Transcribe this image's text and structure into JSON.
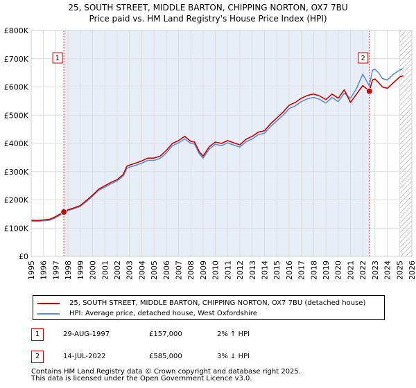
{
  "chart_data": {
    "type": "line",
    "title": "25, SOUTH STREET, MIDDLE BARTON, CHIPPING NORTON, OX7 7BU",
    "subtitle": "Price paid vs. HM Land Registry's House Price Index (HPI)",
    "xlabel": "",
    "ylabel": "",
    "xlim": [
      1995,
      2026
    ],
    "ylim": [
      0,
      800000
    ],
    "y_ticks": [
      0,
      100000,
      200000,
      300000,
      400000,
      500000,
      600000,
      700000,
      800000
    ],
    "y_tick_labels": [
      "£0",
      "£100K",
      "£200K",
      "£300K",
      "£400K",
      "£500K",
      "£600K",
      "£700K",
      "£800K"
    ],
    "x_ticks": [
      1995,
      1996,
      1997,
      1998,
      1999,
      2000,
      2001,
      2002,
      2003,
      2004,
      2005,
      2006,
      2007,
      2008,
      2009,
      2010,
      2011,
      2012,
      2013,
      2014,
      2015,
      2016,
      2017,
      2018,
      2019,
      2020,
      2021,
      2022,
      2023,
      2024,
      2025,
      2026
    ],
    "x_tick_labels": [
      "1995",
      "1996",
      "1997",
      "1998",
      "1999",
      "2000",
      "2001",
      "2002",
      "2003",
      "2004",
      "2005",
      "2006",
      "2007",
      "2008",
      "2009",
      "2010",
      "2011",
      "2012",
      "2013",
      "2014",
      "2015",
      "2016",
      "2017",
      "2018",
      "2019",
      "2020",
      "2021",
      "2022",
      "2023",
      "2024",
      "2025",
      "2026"
    ],
    "grid": true,
    "shaded_period": [
      1997.66,
      2022.54
    ],
    "hatched_future_from": 2025.0,
    "series": [
      {
        "name": "25, SOUTH STREET, MIDDLE BARTON, CHIPPING NORTON, OX7 7BU (detached house)",
        "color": "#cc0000",
        "x": [
          1995.0,
          1995.5,
          1996.0,
          1996.5,
          1997.0,
          1997.66,
          1998.0,
          1998.5,
          1999.0,
          1999.5,
          2000.0,
          2000.5,
          2001.0,
          2001.5,
          2002.0,
          2002.5,
          2002.8,
          2003.0,
          2003.5,
          2004.0,
          2004.5,
          2005.0,
          2005.5,
          2006.0,
          2006.5,
          2007.0,
          2007.5,
          2008.0,
          2008.3,
          2008.7,
          2009.0,
          2009.5,
          2010.0,
          2010.5,
          2011.0,
          2011.5,
          2012.0,
          2012.5,
          2013.0,
          2013.5,
          2014.0,
          2014.5,
          2015.0,
          2015.5,
          2016.0,
          2016.5,
          2017.0,
          2017.5,
          2018.0,
          2018.5,
          2019.0,
          2019.5,
          2020.0,
          2020.5,
          2021.0,
          2021.5,
          2022.0,
          2022.54,
          2022.8,
          2023.0,
          2023.3,
          2023.6,
          2024.0,
          2024.5,
          2025.0,
          2025.3
        ],
        "values": [
          128000,
          127000,
          129000,
          131000,
          141000,
          157000,
          165000,
          172000,
          180000,
          198000,
          217000,
          238000,
          250000,
          262000,
          272000,
          290000,
          320000,
          323000,
          330000,
          338000,
          348000,
          348000,
          355000,
          375000,
          400000,
          410000,
          425000,
          407000,
          405000,
          370000,
          355000,
          388000,
          405000,
          400000,
          410000,
          402000,
          395000,
          415000,
          425000,
          440000,
          445000,
          470000,
          490000,
          510000,
          535000,
          545000,
          560000,
          570000,
          575000,
          568000,
          555000,
          575000,
          560000,
          590000,
          545000,
          575000,
          605000,
          585000,
          625000,
          628000,
          615000,
          600000,
          595000,
          615000,
          635000,
          640000
        ]
      },
      {
        "name": "HPI: Average price, detached house, West Oxfordshire",
        "color": "#5b8fd0",
        "x": [
          1995.0,
          1995.5,
          1996.0,
          1996.5,
          1997.0,
          1997.66,
          1998.0,
          1998.5,
          1999.0,
          1999.5,
          2000.0,
          2000.5,
          2001.0,
          2001.5,
          2002.0,
          2002.5,
          2002.8,
          2003.0,
          2003.5,
          2004.0,
          2004.5,
          2005.0,
          2005.5,
          2006.0,
          2006.5,
          2007.0,
          2007.5,
          2008.0,
          2008.3,
          2008.7,
          2009.0,
          2009.5,
          2010.0,
          2010.5,
          2011.0,
          2011.5,
          2012.0,
          2012.5,
          2013.0,
          2013.5,
          2014.0,
          2014.5,
          2015.0,
          2015.5,
          2016.0,
          2016.5,
          2017.0,
          2017.5,
          2018.0,
          2018.5,
          2019.0,
          2019.5,
          2020.0,
          2020.5,
          2021.0,
          2021.5,
          2022.0,
          2022.54,
          2022.8,
          2023.0,
          2023.3,
          2023.6,
          2024.0,
          2024.5,
          2025.0,
          2025.3
        ],
        "values": [
          125000,
          124000,
          126000,
          128000,
          137000,
          154000,
          162000,
          169000,
          177000,
          194000,
          213000,
          234000,
          245000,
          257000,
          267000,
          285000,
          312000,
          316000,
          322000,
          330000,
          340000,
          340000,
          347000,
          366000,
          392000,
          402000,
          416000,
          400000,
          398000,
          363000,
          348000,
          380000,
          397000,
          392000,
          402000,
          394000,
          387000,
          406000,
          416000,
          431000,
          436000,
          460000,
          480000,
          499000,
          523000,
          533000,
          548000,
          558000,
          563000,
          556000,
          543000,
          563000,
          548000,
          578000,
          560000,
          595000,
          645000,
          604000,
          660000,
          662000,
          650000,
          630000,
          625000,
          645000,
          660000,
          665000
        ]
      }
    ],
    "sale_markers": [
      {
        "label": "1",
        "x": 1997.66,
        "value": 157000
      },
      {
        "label": "2",
        "x": 2022.54,
        "value": 585000
      }
    ]
  },
  "legend": {
    "property": "25, SOUTH STREET, MIDDLE BARTON, CHIPPING NORTON, OX7 7BU (detached house)",
    "hpi": "HPI: Average price, detached house, West Oxfordshire",
    "property_color": "#cc0000",
    "hpi_color": "#5b8fd0"
  },
  "transactions": [
    {
      "badge": "1",
      "date": "29-AUG-1997",
      "price": "£157,000",
      "hpi_change": "2% ↑ HPI"
    },
    {
      "badge": "2",
      "date": "14-JUL-2022",
      "price": "£585,000",
      "hpi_change": "3% ↓ HPI"
    }
  ],
  "footer": {
    "line1": "Contains HM Land Registry data © Crown copyright and database right 2025.",
    "line2": "This data is licensed under the Open Government Licence v3.0."
  }
}
